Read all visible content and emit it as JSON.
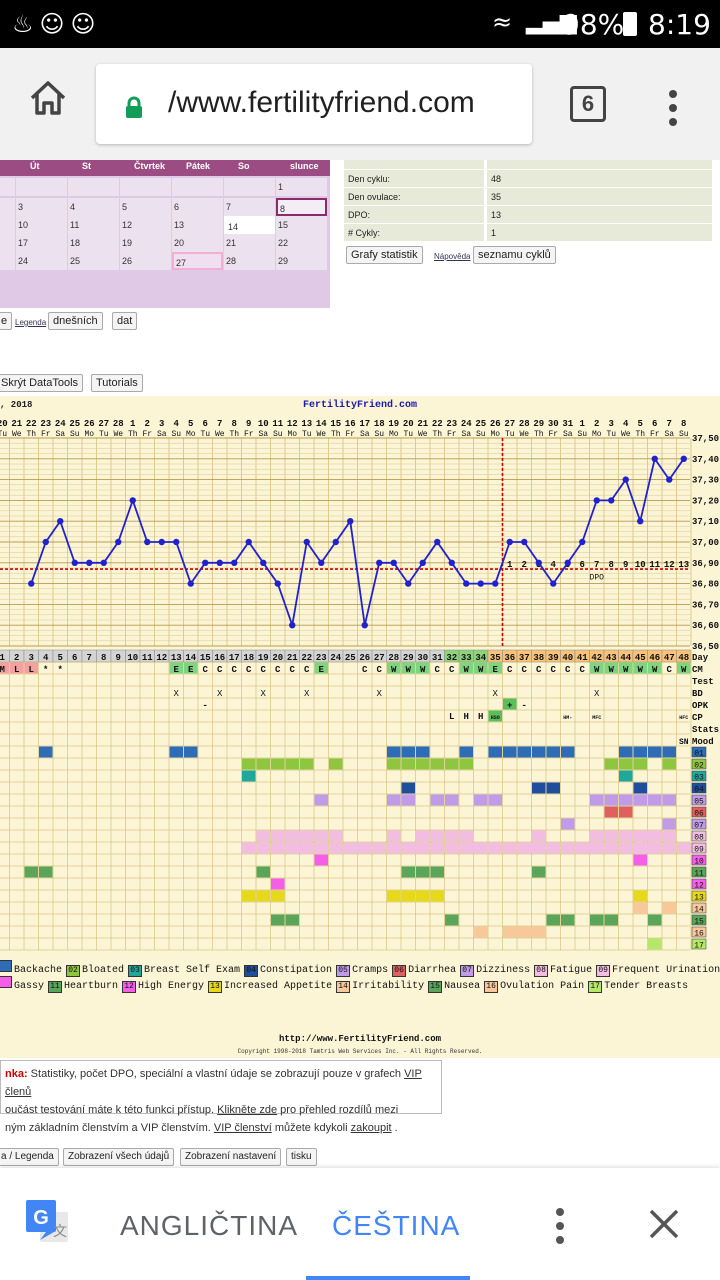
{
  "status_bar": {
    "battery": "98%",
    "time": "8:19"
  },
  "browser": {
    "url": "/www.fertilityfriend.com",
    "tab_count": "6"
  },
  "calendar": {
    "headers": [
      "Út",
      "St",
      "Čtvrtek",
      "Pátek",
      "So",
      "slunce"
    ],
    "rows": [
      [
        "",
        "",
        "",
        "",
        "",
        "1"
      ],
      [
        "3",
        "4",
        "5",
        "6",
        "7",
        "8"
      ],
      [
        "10",
        "11",
        "12",
        "13",
        "14",
        "15"
      ],
      [
        "17",
        "18",
        "19",
        "20",
        "21",
        "22"
      ],
      [
        "24",
        "25",
        "26",
        "27",
        "28",
        "29"
      ]
    ]
  },
  "stats": [
    {
      "label": "Den cyklu:",
      "value": "48"
    },
    {
      "label": "Den ovulace:",
      "value": "35"
    },
    {
      "label": "DPO:",
      "value": "13"
    },
    {
      "label": "# Cykly:",
      "value": "1"
    }
  ],
  "buttons": {
    "grafy": "Grafy statistik",
    "napoveda": "Nápověda",
    "seznam": "seznamu cyklů",
    "e": "e",
    "legenda": "Legenda",
    "dnesnich": "dnešních",
    "dat": "dat",
    "skryt": "Skrýt DataTools",
    "tutorials": "Tutorials",
    "legenda2": "a / Legenda",
    "zobrazeni_udaju": "Zobrazení všech údajů",
    "zobrazeni_nastaveni": "Zobrazení nastavení",
    "tisku": "tisku"
  },
  "chart": {
    "year_label": ", 2018",
    "title": "FertilityFriend.com",
    "footer_url": "http://www.FertilityFriend.com",
    "footer_copy": "Copyright 1998-2018 Tamtris Web Services Inc. - All Rights Reserved.",
    "right_labels": [
      "Day",
      "CM",
      "Test",
      "BD",
      "OPK",
      "CP",
      "Stats",
      "Mood"
    ],
    "colors": {
      "line": "#2222cc",
      "coverline": "#cc0000",
      "blue": "#2e6cb5",
      "green": "#8fc640",
      "teal": "#1fa79b",
      "purple": "#c09be8",
      "pink": "#f2bde0",
      "red": "#e06060",
      "magenta": "#f45ee9",
      "dkgreen": "#5aa55a",
      "yellow": "#e6d81a",
      "peach": "#f8c89a",
      "lime": "#b4e868",
      "navy": "#1f4f9c"
    }
  },
  "chart_data": {
    "type": "line",
    "title": "FertilityFriend.com",
    "x": [
      "20",
      "21",
      "22",
      "23",
      "24",
      "25",
      "26",
      "27",
      "28",
      "1",
      "2",
      "3",
      "4",
      "5",
      "6",
      "7",
      "8",
      "9",
      "10",
      "11",
      "12",
      "13",
      "14",
      "15",
      "16",
      "17",
      "18",
      "19",
      "20",
      "21",
      "22",
      "23",
      "24",
      "25",
      "26",
      "27",
      "28",
      "29",
      "30",
      "31",
      "1",
      "2",
      "3",
      "4",
      "5",
      "6",
      "7",
      "8"
    ],
    "x2": [
      "Tu",
      "We",
      "Th",
      "Fr",
      "Sa",
      "Su",
      "Mo",
      "Tu",
      "We",
      "Th",
      "Fr",
      "Sa",
      "Su",
      "Mo",
      "Tu",
      "We",
      "Th",
      "Fr",
      "Sa",
      "Su",
      "Mo",
      "Tu",
      "We",
      "Th",
      "Fr",
      "Sa",
      "Su",
      "Mo",
      "Tu",
      "We",
      "Th",
      "Fr",
      "Sa",
      "Su",
      "Mo",
      "Tu",
      "We",
      "Th",
      "Fr",
      "Sa",
      "Su",
      "Mo",
      "Tu",
      "We",
      "Th",
      "Fr",
      "Sa",
      "Su"
    ],
    "day": [
      "1",
      "2",
      "3",
      "4",
      "5",
      "6",
      "7",
      "8",
      "9",
      "10",
      "11",
      "12",
      "13",
      "14",
      "15",
      "16",
      "17",
      "18",
      "19",
      "20",
      "21",
      "22",
      "23",
      "24",
      "25",
      "26",
      "27",
      "28",
      "29",
      "30",
      "31",
      "32",
      "33",
      "34",
      "35",
      "36",
      "37",
      "38",
      "39",
      "40",
      "41",
      "42",
      "43",
      "44",
      "45",
      "46",
      "47",
      "48"
    ],
    "temps": [
      null,
      null,
      36.8,
      37.0,
      37.1,
      36.9,
      36.9,
      36.9,
      37.0,
      37.2,
      37.0,
      37.0,
      37.0,
      36.8,
      36.9,
      36.9,
      36.9,
      37.0,
      36.9,
      36.8,
      36.6,
      37.0,
      36.9,
      37.0,
      37.1,
      36.6,
      36.9,
      36.9,
      36.8,
      36.9,
      37.0,
      36.9,
      36.8,
      36.8,
      36.8,
      37.0,
      37.0,
      36.9,
      36.8,
      36.9,
      37.0,
      37.2,
      37.2,
      37.3,
      37.1,
      37.4,
      37.3,
      37.4
    ],
    "ylim": [
      36.5,
      37.5
    ],
    "yticks": [
      "37,50",
      "37,40",
      "37,30",
      "37,20",
      "37,10",
      "37,00",
      "36,90",
      "36,80",
      "36,70",
      "36,60",
      "36,50"
    ],
    "coverline": 36.87,
    "ovulation_day": 35,
    "dpo_labels": [
      "1",
      "2",
      "3",
      "4",
      "5",
      "6",
      "7",
      "8",
      "9",
      "10",
      "11",
      "12",
      "13"
    ],
    "dpo_text": "DPO",
    "cm": [
      "M",
      "L",
      "L",
      "*",
      "*",
      "",
      "",
      "",
      "",
      "",
      "",
      "",
      "E",
      "E",
      "C",
      "C",
      "C",
      "C",
      "C",
      "C",
      "C",
      "C",
      "E",
      "",
      "",
      "C",
      "C",
      "W",
      "W",
      "W",
      "C",
      "C",
      "W",
      "W",
      "E",
      "C",
      "C",
      "C",
      "C",
      "C",
      "C",
      "W",
      "W",
      "W",
      "W",
      "W",
      "C",
      "W"
    ],
    "bd_days": [
      12,
      15,
      18,
      21,
      26,
      34,
      41
    ],
    "cp_text": [
      {
        "day": 31,
        "text": "L"
      },
      {
        "day": 32,
        "text": "H"
      },
      {
        "day": 33,
        "text": "H"
      },
      {
        "day": 34,
        "text": "HSO"
      },
      {
        "day": 39,
        "text": "HM-"
      },
      {
        "day": 41,
        "text": "MFC"
      },
      {
        "day": 47,
        "text": "HFC"
      }
    ],
    "opk": [
      {
        "day": 14,
        "text": "-"
      },
      {
        "day": 35,
        "text": "+"
      },
      {
        "day": 36,
        "text": "-"
      }
    ],
    "mood": [
      {
        "day": 47,
        "text": "SN"
      }
    ],
    "symptom_rows": [
      "01",
      "02",
      "03",
      "04",
      "05",
      "06",
      "07",
      "08",
      "09",
      "10",
      "11",
      "12",
      "13",
      "14",
      "15",
      "16",
      "17"
    ]
  },
  "legend_rows": [
    [
      {
        "code": "",
        "label": "Backache"
      },
      {
        "code": "02",
        "label": "Bloated"
      },
      {
        "code": "03",
        "label": "Breast Self Exam"
      },
      {
        "code": "04",
        "label": "Constipation"
      },
      {
        "code": "05",
        "label": "Cramps"
      },
      {
        "code": "06",
        "label": "Diarrhea"
      },
      {
        "code": "07",
        "label": "Dizziness"
      },
      {
        "code": "08",
        "label": "Fatigue"
      },
      {
        "code": "09",
        "label": "Frequent Urination"
      }
    ],
    [
      {
        "code": "",
        "label": "Gassy"
      },
      {
        "code": "11",
        "label": "Heartburn"
      },
      {
        "code": "12",
        "label": "High Energy"
      },
      {
        "code": "13",
        "label": "Increased Appetite"
      },
      {
        "code": "14",
        "label": "Irritability"
      },
      {
        "code": "15",
        "label": "Nausea"
      },
      {
        "code": "16",
        "label": "Ovulation Pain"
      },
      {
        "code": "17",
        "label": "Tender Breasts"
      }
    ]
  ],
  "note": {
    "label": "nka:",
    "line1": " Statistiky, počet DPO, speciální a vlastní údaje se zobrazují pouze v grafech ",
    "link1": "VIP členů",
    "line2": "oučást testování máte k této funkci přístup. ",
    "link2": "Klikněte zde",
    "line2b": " pro přehled rozdílů mezi",
    "line3": "ným základním členstvím a VIP členstvím. ",
    "link3": "VIP členství",
    "line3b": " můžete kdykoli ",
    "link4": "zakoupit",
    "line3c": " ."
  },
  "translate": {
    "lang1": "ANGLIČTINA",
    "lang2": "ČEŠTINA"
  }
}
